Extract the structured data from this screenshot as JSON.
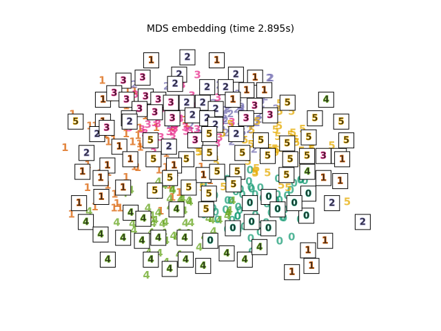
{
  "chart_data": {
    "type": "scatter",
    "title": "MDS embedding (time 2.895s)",
    "xlabel": "",
    "ylabel": "",
    "axes_visible": false,
    "grid": false,
    "legend": false,
    "xlim": [
      0,
      1
    ],
    "ylim": [
      0,
      1
    ],
    "point_marker": "digit label text",
    "classes": [
      {
        "digit": "0",
        "color": "#1b9e77",
        "center": [
          0.6,
          0.34
        ],
        "spread": [
          0.08,
          0.07
        ]
      },
      {
        "digit": "1",
        "color": "#d95f02",
        "center": [
          0.22,
          0.53
        ],
        "spread": [
          0.11,
          0.16
        ]
      },
      {
        "digit": "2",
        "color": "#7570b3",
        "center": [
          0.51,
          0.73
        ],
        "spread": [
          0.08,
          0.08
        ]
      },
      {
        "digit": "3",
        "color": "#e7298a",
        "center": [
          0.36,
          0.7
        ],
        "spread": [
          0.07,
          0.07
        ]
      },
      {
        "digit": "4",
        "color": "#66a61e",
        "center": [
          0.36,
          0.3
        ],
        "spread": [
          0.09,
          0.07
        ]
      },
      {
        "digit": "5",
        "color": "#e6ab02",
        "center": [
          0.63,
          0.56
        ],
        "spread": [
          0.1,
          0.08
        ]
      }
    ],
    "thumbnails": [
      {
        "digit": "1",
        "x": 0.281,
        "y": 0.919
      },
      {
        "digit": "2",
        "x": 0.387,
        "y": 0.931
      },
      {
        "digit": "1",
        "x": 0.473,
        "y": 0.919
      },
      {
        "digit": "2",
        "x": 0.363,
        "y": 0.862
      },
      {
        "digit": "2",
        "x": 0.529,
        "y": 0.862
      },
      {
        "digit": "1",
        "x": 0.585,
        "y": 0.85
      },
      {
        "digit": "3",
        "x": 0.2,
        "y": 0.838
      },
      {
        "digit": "3",
        "x": 0.256,
        "y": 0.85
      },
      {
        "digit": "2",
        "x": 0.351,
        "y": 0.825
      },
      {
        "digit": "2",
        "x": 0.445,
        "y": 0.812
      },
      {
        "digit": "2",
        "x": 0.499,
        "y": 0.812
      },
      {
        "digit": "1",
        "x": 0.56,
        "y": 0.8
      },
      {
        "digit": "1",
        "x": 0.612,
        "y": 0.8
      },
      {
        "digit": "1",
        "x": 0.14,
        "y": 0.762
      },
      {
        "digit": "3",
        "x": 0.173,
        "y": 0.788
      },
      {
        "digit": "3",
        "x": 0.209,
        "y": 0.762
      },
      {
        "digit": "3",
        "x": 0.265,
        "y": 0.775
      },
      {
        "digit": "3",
        "x": 0.302,
        "y": 0.762
      },
      {
        "digit": "2",
        "x": 0.385,
        "y": 0.75
      },
      {
        "digit": "2",
        "x": 0.432,
        "y": 0.75
      },
      {
        "digit": "2",
        "x": 0.47,
        "y": 0.725
      },
      {
        "digit": "1",
        "x": 0.52,
        "y": 0.762
      },
      {
        "digit": "3",
        "x": 0.584,
        "y": 0.738
      },
      {
        "digit": "5",
        "x": 0.68,
        "y": 0.75
      },
      {
        "digit": "4",
        "x": 0.793,
        "y": 0.762
      },
      {
        "digit": "3",
        "x": 0.247,
        "y": 0.725
      },
      {
        "digit": "3",
        "x": 0.339,
        "y": 0.75
      },
      {
        "digit": "3",
        "x": 0.216,
        "y": 0.688
      },
      {
        "digit": "5",
        "x": 0.06,
        "y": 0.675
      },
      {
        "digit": "1",
        "x": 0.14,
        "y": 0.675
      },
      {
        "digit": "2",
        "x": 0.218,
        "y": 0.675
      },
      {
        "digit": "3",
        "x": 0.292,
        "y": 0.712
      },
      {
        "digit": "3",
        "x": 0.343,
        "y": 0.688
      },
      {
        "digit": "2",
        "x": 0.402,
        "y": 0.7
      },
      {
        "digit": "2",
        "x": 0.445,
        "y": 0.688
      },
      {
        "digit": "2",
        "x": 0.469,
        "y": 0.662
      },
      {
        "digit": "3",
        "x": 0.559,
        "y": 0.688
      },
      {
        "digit": "3",
        "x": 0.629,
        "y": 0.7
      },
      {
        "digit": "5",
        "x": 0.76,
        "y": 0.688
      },
      {
        "digit": "5",
        "x": 0.837,
        "y": 0.675
      },
      {
        "digit": "2",
        "x": 0.123,
        "y": 0.625
      },
      {
        "digit": "3",
        "x": 0.151,
        "y": 0.65
      },
      {
        "digit": "1",
        "x": 0.188,
        "y": 0.575
      },
      {
        "digit": "5",
        "x": 0.279,
        "y": 0.6
      },
      {
        "digit": "2",
        "x": 0.333,
        "y": 0.575
      },
      {
        "digit": "3",
        "x": 0.41,
        "y": 0.6
      },
      {
        "digit": "5",
        "x": 0.451,
        "y": 0.625
      },
      {
        "digit": "2",
        "x": 0.53,
        "y": 0.625
      },
      {
        "digit": "5",
        "x": 0.602,
        "y": 0.6
      },
      {
        "digit": "5",
        "x": 0.679,
        "y": 0.588
      },
      {
        "digit": "5",
        "x": 0.742,
        "y": 0.612
      },
      {
        "digit": "5",
        "x": 0.852,
        "y": 0.6
      },
      {
        "digit": "2",
        "x": 0.092,
        "y": 0.55
      },
      {
        "digit": "1",
        "x": 0.153,
        "y": 0.5
      },
      {
        "digit": "1",
        "x": 0.22,
        "y": 0.525
      },
      {
        "digit": "5",
        "x": 0.288,
        "y": 0.525
      },
      {
        "digit": "5",
        "x": 0.384,
        "y": 0.525
      },
      {
        "digit": "1",
        "x": 0.348,
        "y": 0.5
      },
      {
        "digit": "5",
        "x": 0.452,
        "y": 0.55
      },
      {
        "digit": "5",
        "x": 0.548,
        "y": 0.55
      },
      {
        "digit": "5",
        "x": 0.622,
        "y": 0.538
      },
      {
        "digit": "5",
        "x": 0.688,
        "y": 0.525
      },
      {
        "digit": "5",
        "x": 0.737,
        "y": 0.538
      },
      {
        "digit": "3",
        "x": 0.785,
        "y": 0.538
      },
      {
        "digit": "5",
        "x": 0.83,
        "y": 0.538
      },
      {
        "digit": "1",
        "x": 0.08,
        "y": 0.475
      },
      {
        "digit": "1",
        "x": 0.133,
        "y": 0.45
      },
      {
        "digit": "1",
        "x": 0.199,
        "y": 0.412
      },
      {
        "digit": "5",
        "x": 0.336,
        "y": 0.45
      },
      {
        "digit": "1",
        "x": 0.434,
        "y": 0.462
      },
      {
        "digit": "5",
        "x": 0.474,
        "y": 0.475
      },
      {
        "digit": "5",
        "x": 0.533,
        "y": 0.475
      },
      {
        "digit": "5",
        "x": 0.677,
        "y": 0.462
      },
      {
        "digit": "4",
        "x": 0.738,
        "y": 0.475
      },
      {
        "digit": "1",
        "x": 0.785,
        "y": 0.45
      },
      {
        "digit": "1",
        "x": 0.834,
        "y": 0.438
      },
      {
        "digit": "1",
        "x": 0.07,
        "y": 0.35
      },
      {
        "digit": "1",
        "x": 0.135,
        "y": 0.375
      },
      {
        "digit": "5",
        "x": 0.292,
        "y": 0.4
      },
      {
        "digit": "5",
        "x": 0.391,
        "y": 0.412
      },
      {
        "digit": "5",
        "x": 0.45,
        "y": 0.388
      },
      {
        "digit": "5",
        "x": 0.522,
        "y": 0.425
      },
      {
        "digit": "0",
        "x": 0.625,
        "y": 0.375
      },
      {
        "digit": "0",
        "x": 0.741,
        "y": 0.388
      },
      {
        "digit": "2",
        "x": 0.81,
        "y": 0.35
      },
      {
        "digit": "4",
        "x": 0.09,
        "y": 0.275
      },
      {
        "digit": "4",
        "x": 0.221,
        "y": 0.312
      },
      {
        "digit": "4",
        "x": 0.258,
        "y": 0.288
      },
      {
        "digit": "4",
        "x": 0.355,
        "y": 0.325
      },
      {
        "digit": "5",
        "x": 0.442,
        "y": 0.325
      },
      {
        "digit": "0",
        "x": 0.57,
        "y": 0.35
      },
      {
        "digit": "0",
        "x": 0.651,
        "y": 0.325
      },
      {
        "digit": "0",
        "x": 0.735,
        "y": 0.3
      },
      {
        "digit": "2",
        "x": 0.9,
        "y": 0.275
      },
      {
        "digit": "4",
        "x": 0.133,
        "y": 0.225
      },
      {
        "digit": "4",
        "x": 0.199,
        "y": 0.212
      },
      {
        "digit": "4",
        "x": 0.302,
        "y": 0.212
      },
      {
        "digit": "4",
        "x": 0.379,
        "y": 0.212
      },
      {
        "digit": "0",
        "x": 0.454,
        "y": 0.2
      },
      {
        "digit": "0",
        "x": 0.52,
        "y": 0.25
      },
      {
        "digit": "0",
        "x": 0.624,
        "y": 0.25
      },
      {
        "digit": "1",
        "x": 0.79,
        "y": 0.2
      },
      {
        "digit": "4",
        "x": 0.154,
        "y": 0.125
      },
      {
        "digit": "4",
        "x": 0.28,
        "y": 0.125
      },
      {
        "digit": "4",
        "x": 0.335,
        "y": 0.088
      },
      {
        "digit": "4",
        "x": 0.382,
        "y": 0.125
      },
      {
        "digit": "4",
        "x": 0.433,
        "y": 0.1
      },
      {
        "digit": "4",
        "x": 0.502,
        "y": 0.15
      },
      {
        "digit": "4",
        "x": 0.555,
        "y": 0.125
      },
      {
        "digit": "4",
        "x": 0.598,
        "y": 0.175
      },
      {
        "digit": "1",
        "x": 0.74,
        "y": 0.162
      },
      {
        "digit": "1",
        "x": 0.693,
        "y": 0.075
      },
      {
        "digit": "1",
        "x": 0.75,
        "y": 0.1
      },
      {
        "digit": "0",
        "x": 0.575,
        "y": 0.275
      },
      {
        "digit": "4",
        "x": 0.254,
        "y": 0.2
      },
      {
        "digit": "1",
        "x": 0.84,
        "y": 0.525
      },
      {
        "digit": "0",
        "x": 0.7,
        "y": 0.35
      }
    ]
  }
}
